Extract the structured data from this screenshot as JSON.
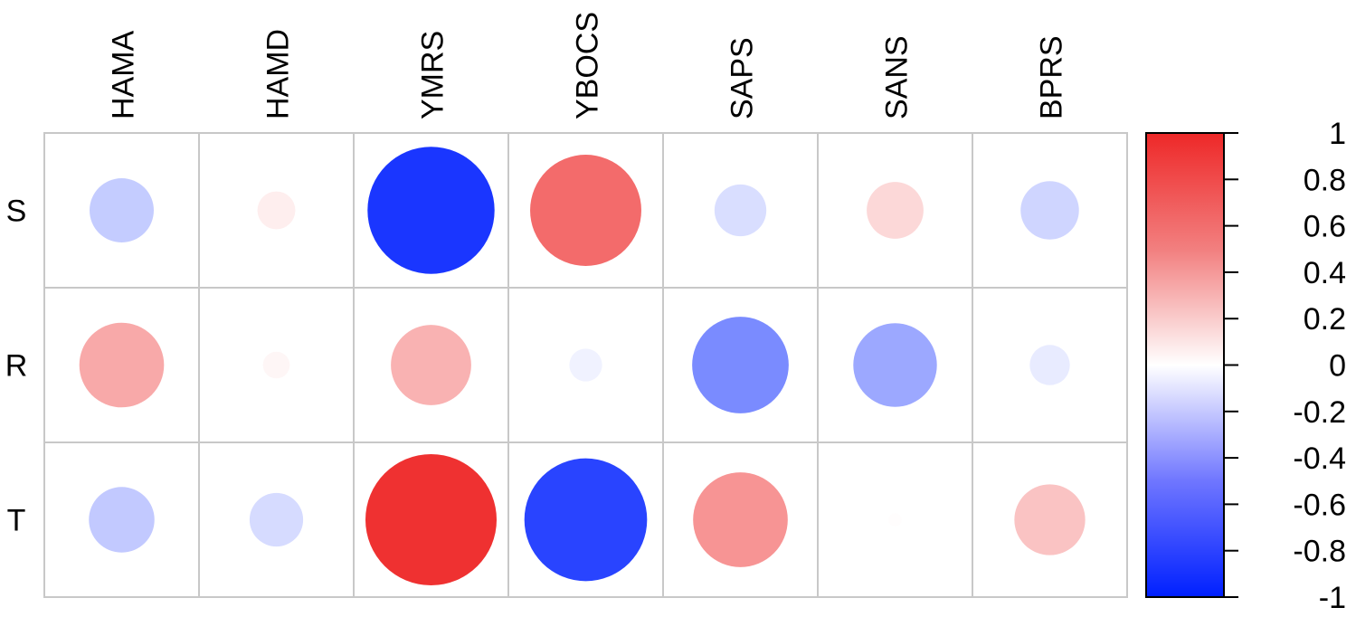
{
  "chart_data": {
    "type": "heatmap",
    "subtype": "correlation-circles",
    "columns": [
      "HAMA",
      "HAMD",
      "YMRS",
      "YBOCS",
      "SAPS",
      "SANS",
      "BPRS"
    ],
    "rows": [
      "S",
      "R",
      "T"
    ],
    "values": [
      [
        -0.23,
        0.08,
        -0.9,
        0.69,
        -0.15,
        0.18,
        -0.19
      ],
      [
        0.4,
        0.04,
        0.36,
        -0.06,
        -0.52,
        -0.39,
        -0.09
      ],
      [
        -0.24,
        -0.16,
        0.96,
        -0.84,
        0.5,
        0.01,
        0.28
      ]
    ],
    "color_scale": {
      "min": -1,
      "max": 1,
      "low_color": "#0020ff",
      "mid_color": "#ffffff",
      "high_color": "#ee2828"
    },
    "colorbar_ticks": [
      "1",
      "0.8",
      "0.6",
      "0.4",
      "0.2",
      "0",
      "-0.2",
      "-0.4",
      "-0.6",
      "-0.8",
      "-1"
    ],
    "grid": true
  }
}
